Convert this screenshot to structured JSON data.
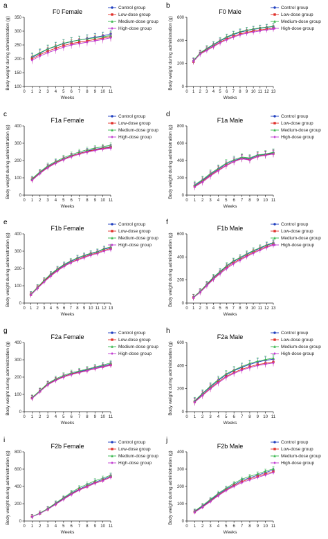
{
  "chart_data": [
    {
      "panel": "a",
      "type": "line",
      "title": "F0 Female",
      "xlabel": "Weeks",
      "ylabel": "Body weight during administration (g)",
      "x": [
        1,
        2,
        3,
        4,
        5,
        6,
        7,
        8,
        9,
        10,
        11
      ],
      "xlim": [
        0,
        11
      ],
      "ylim": [
        100,
        350
      ],
      "yticks": [
        100,
        150,
        200,
        250,
        300,
        350
      ],
      "legend": "top-right",
      "grid": false,
      "series": [
        {
          "name": "Control group",
          "color": "#1f3fbf",
          "values": [
            205,
            220,
            235,
            245,
            255,
            262,
            268,
            273,
            278,
            283,
            290
          ],
          "error": 14
        },
        {
          "name": "Low-dose group",
          "color": "#e0302a",
          "values": [
            200,
            215,
            228,
            238,
            248,
            255,
            260,
            265,
            270,
            275,
            280
          ],
          "error": 14
        },
        {
          "name": "Medium-dose group",
          "color": "#35b54a",
          "values": [
            208,
            222,
            236,
            246,
            256,
            263,
            268,
            272,
            276,
            280,
            284
          ],
          "error": 14
        },
        {
          "name": "High-dose group",
          "color": "#c03ad0",
          "values": [
            195,
            210,
            222,
            232,
            242,
            250,
            255,
            260,
            265,
            270,
            276
          ],
          "error": 14
        }
      ]
    },
    {
      "panel": "b",
      "type": "line",
      "title": "F0 Male",
      "xlabel": "Weeks",
      "ylabel": "Body weight during administration (g)",
      "x": [
        1,
        2,
        3,
        4,
        5,
        6,
        7,
        8,
        9,
        10,
        11,
        12,
        13
      ],
      "xlim": [
        0,
        13
      ],
      "ylim": [
        0,
        600
      ],
      "yticks": [
        0,
        200,
        400,
        600
      ],
      "legend": "top-right",
      "grid": false,
      "series": [
        {
          "name": "Control group",
          "color": "#1f3fbf",
          "values": [
            220,
            290,
            325,
            360,
            395,
            425,
            450,
            470,
            485,
            495,
            505,
            512,
            520
          ],
          "error": 25
        },
        {
          "name": "Low-dose group",
          "color": "#e0302a",
          "values": [
            215,
            285,
            318,
            350,
            385,
            412,
            435,
            455,
            470,
            480,
            490,
            498,
            505
          ],
          "error": 25
        },
        {
          "name": "Medium-dose group",
          "color": "#35b54a",
          "values": [
            225,
            292,
            330,
            365,
            400,
            430,
            455,
            475,
            488,
            498,
            508,
            515,
            522
          ],
          "error": 25
        },
        {
          "name": "High-dose group",
          "color": "#c03ad0",
          "values": [
            218,
            280,
            312,
            345,
            378,
            405,
            428,
            448,
            462,
            472,
            482,
            490,
            498
          ],
          "error": 25
        }
      ]
    },
    {
      "panel": "c",
      "type": "line",
      "title": "F1a Female",
      "xlabel": "Weeks",
      "ylabel": "Body weight during administration (g)",
      "x": [
        1,
        2,
        3,
        4,
        5,
        6,
        7,
        8,
        9,
        10,
        11
      ],
      "xlim": [
        0,
        11
      ],
      "ylim": [
        0,
        400
      ],
      "yticks": [
        0,
        100,
        200,
        300,
        400
      ],
      "legend": "top-right",
      "grid": false,
      "series": [
        {
          "name": "Control group",
          "color": "#1f3fbf",
          "values": [
            90,
            130,
            165,
            190,
            210,
            228,
            242,
            255,
            265,
            272,
            280
          ],
          "error": 15
        },
        {
          "name": "Low-dose group",
          "color": "#e0302a",
          "values": [
            88,
            128,
            162,
            188,
            208,
            226,
            240,
            252,
            262,
            270,
            276
          ],
          "error": 15
        },
        {
          "name": "Medium-dose group",
          "color": "#35b54a",
          "values": [
            95,
            135,
            170,
            195,
            216,
            234,
            250,
            262,
            272,
            280,
            288
          ],
          "error": 15
        },
        {
          "name": "High-dose group",
          "color": "#c03ad0",
          "values": [
            85,
            125,
            158,
            184,
            204,
            222,
            236,
            248,
            258,
            266,
            272
          ],
          "error": 15
        }
      ]
    },
    {
      "panel": "d",
      "type": "line",
      "title": "F1a Male",
      "xlabel": "Weeks",
      "ylabel": "Body weight during administration (g)",
      "x": [
        1,
        2,
        3,
        4,
        5,
        6,
        7,
        8,
        9,
        10,
        11
      ],
      "xlim": [
        0,
        11
      ],
      "ylim": [
        0,
        800
      ],
      "yticks": [
        0,
        200,
        400,
        600,
        800
      ],
      "legend": "top-right",
      "grid": false,
      "series": [
        {
          "name": "Control group",
          "color": "#1f3fbf",
          "values": [
            110,
            170,
            240,
            300,
            360,
            400,
            430,
            420,
            460,
            470,
            490
          ],
          "error": 40
        },
        {
          "name": "Low-dose group",
          "color": "#e0302a",
          "values": [
            100,
            160,
            230,
            290,
            345,
            390,
            425,
            410,
            450,
            465,
            480
          ],
          "error": 40
        },
        {
          "name": "Medium-dose group",
          "color": "#35b54a",
          "values": [
            120,
            180,
            250,
            310,
            370,
            410,
            440,
            430,
            465,
            475,
            495
          ],
          "error": 40
        },
        {
          "name": "High-dose group",
          "color": "#c03ad0",
          "values": [
            95,
            150,
            220,
            280,
            340,
            385,
            420,
            405,
            445,
            460,
            475
          ],
          "error": 40
        }
      ]
    },
    {
      "panel": "e",
      "type": "line",
      "title": "F1b Female",
      "xlabel": "Weeks",
      "ylabel": "Body weight during administration (g)",
      "x": [
        1,
        2,
        3,
        4,
        5,
        6,
        7,
        8,
        9,
        10,
        11,
        12,
        13
      ],
      "xlim": [
        0,
        13
      ],
      "ylim": [
        0,
        400
      ],
      "yticks": [
        0,
        100,
        200,
        300,
        400
      ],
      "legend": "top-right",
      "grid": false,
      "series": [
        {
          "name": "Control group",
          "color": "#1f3fbf",
          "values": [
            50,
            90,
            130,
            165,
            195,
            220,
            240,
            258,
            272,
            285,
            295,
            312,
            320
          ],
          "error": 15
        },
        {
          "name": "Low-dose group",
          "color": "#e0302a",
          "values": [
            48,
            88,
            126,
            160,
            190,
            215,
            235,
            252,
            266,
            280,
            290,
            305,
            315
          ],
          "error": 15
        },
        {
          "name": "Medium-dose group",
          "color": "#35b54a",
          "values": [
            52,
            92,
            132,
            168,
            198,
            224,
            244,
            262,
            276,
            288,
            298,
            315,
            325
          ],
          "error": 15
        },
        {
          "name": "High-dose group",
          "color": "#c03ad0",
          "values": [
            46,
            85,
            122,
            156,
            186,
            212,
            232,
            248,
            262,
            276,
            286,
            300,
            310
          ],
          "error": 15
        }
      ]
    },
    {
      "panel": "f",
      "type": "line",
      "title": "F1b Male",
      "xlabel": "Weeks",
      "ylabel": "Body weight during administration (g)",
      "x": [
        1,
        2,
        3,
        4,
        5,
        6,
        7,
        8,
        9,
        10,
        11,
        12,
        13
      ],
      "xlim": [
        0,
        13
      ],
      "ylim": [
        0,
        600
      ],
      "yticks": [
        0,
        200,
        400,
        600
      ],
      "legend": "top-right",
      "grid": false,
      "series": [
        {
          "name": "Control group",
          "color": "#1f3fbf",
          "values": [
            50,
            100,
            160,
            220,
            270,
            320,
            360,
            390,
            420,
            450,
            475,
            500,
            520
          ],
          "error": 25
        },
        {
          "name": "Low-dose group",
          "color": "#e0302a",
          "values": [
            48,
            95,
            155,
            212,
            262,
            310,
            350,
            380,
            410,
            440,
            465,
            490,
            510
          ],
          "error": 25
        },
        {
          "name": "Medium-dose group",
          "color": "#35b54a",
          "values": [
            52,
            102,
            165,
            225,
            275,
            325,
            365,
            395,
            428,
            455,
            480,
            505,
            525
          ],
          "error": 25
        },
        {
          "name": "High-dose group",
          "color": "#c03ad0",
          "values": [
            46,
            92,
            150,
            205,
            255,
            300,
            340,
            372,
            402,
            432,
            458,
            482,
            502
          ],
          "error": 25
        }
      ]
    },
    {
      "panel": "g",
      "type": "line",
      "title": "F2a Female",
      "xlabel": "Weeks",
      "ylabel": "Body weight during administration (g)",
      "x": [
        1,
        2,
        3,
        4,
        5,
        6,
        7,
        8,
        9,
        10,
        11
      ],
      "xlim": [
        0,
        11
      ],
      "ylim": [
        0,
        400
      ],
      "yticks": [
        0,
        100,
        200,
        300,
        400
      ],
      "legend": "top-right",
      "grid": false,
      "series": [
        {
          "name": "Control group",
          "color": "#1f3fbf",
          "values": [
            80,
            120,
            160,
            185,
            205,
            220,
            232,
            242,
            255,
            265,
            275
          ],
          "error": 15
        },
        {
          "name": "Low-dose group",
          "color": "#e0302a",
          "values": [
            78,
            118,
            158,
            183,
            203,
            218,
            228,
            238,
            250,
            260,
            270
          ],
          "error": 15
        },
        {
          "name": "Medium-dose group",
          "color": "#35b54a",
          "values": [
            82,
            122,
            164,
            190,
            210,
            225,
            236,
            246,
            258,
            270,
            282
          ],
          "error": 15
        },
        {
          "name": "High-dose group",
          "color": "#c03ad0",
          "values": [
            76,
            116,
            155,
            180,
            200,
            214,
            226,
            236,
            248,
            258,
            268
          ],
          "error": 15
        }
      ]
    },
    {
      "panel": "h",
      "type": "line",
      "title": "F2a Male",
      "xlabel": "Weeks",
      "ylabel": "Body weight during administration (g)",
      "x": [
        1,
        2,
        3,
        4,
        5,
        6,
        7,
        8,
        9,
        10,
        11
      ],
      "xlim": [
        0,
        11
      ],
      "ylim": [
        0,
        600
      ],
      "yticks": [
        0,
        200,
        400,
        600
      ],
      "legend": "top-right",
      "grid": false,
      "series": [
        {
          "name": "Control group",
          "color": "#1f3fbf",
          "values": [
            90,
            155,
            215,
            270,
            320,
            355,
            385,
            410,
            430,
            445,
            455
          ],
          "error": 30
        },
        {
          "name": "Low-dose group",
          "color": "#e0302a",
          "values": [
            85,
            145,
            205,
            258,
            305,
            340,
            368,
            390,
            408,
            420,
            430
          ],
          "error": 30
        },
        {
          "name": "Medium-dose group",
          "color": "#35b54a",
          "values": [
            95,
            160,
            222,
            278,
            328,
            362,
            392,
            418,
            438,
            452,
            465
          ],
          "error": 30
        },
        {
          "name": "High-dose group",
          "color": "#c03ad0",
          "values": [
            82,
            140,
            198,
            250,
            298,
            332,
            360,
            382,
            400,
            412,
            422
          ],
          "error": 30
        }
      ]
    },
    {
      "panel": "i",
      "type": "line",
      "title": "F2b Female",
      "xlabel": "Weeks",
      "ylabel": "Body weight during administration (g)",
      "x": [
        1,
        2,
        3,
        4,
        5,
        6,
        7,
        8,
        9,
        10,
        11
      ],
      "xlim": [
        0,
        11
      ],
      "ylim": [
        0,
        800
      ],
      "yticks": [
        0,
        200,
        400,
        600,
        800
      ],
      "legend": "top-right",
      "grid": false,
      "series": [
        {
          "name": "Control group",
          "color": "#1f3fbf",
          "values": [
            50,
            90,
            140,
            200,
            260,
            320,
            370,
            410,
            450,
            480,
            520
          ],
          "error": 25
        },
        {
          "name": "Low-dose group",
          "color": "#e0302a",
          "values": [
            50,
            88,
            136,
            195,
            255,
            312,
            362,
            400,
            440,
            470,
            510
          ],
          "error": 25
        },
        {
          "name": "Medium-dose group",
          "color": "#35b54a",
          "values": [
            52,
            92,
            145,
            208,
            270,
            332,
            385,
            425,
            465,
            495,
            530
          ],
          "error": 25
        },
        {
          "name": "High-dose group",
          "color": "#c03ad0",
          "values": [
            48,
            86,
            134,
            192,
            250,
            306,
            356,
            395,
            435,
            465,
            505
          ],
          "error": 25
        }
      ]
    },
    {
      "panel": "j",
      "type": "line",
      "title": "F2b Male",
      "xlabel": "Weeks",
      "ylabel": "Body weight during administration (g)",
      "x": [
        1,
        2,
        3,
        4,
        5,
        6,
        7,
        8,
        9,
        10,
        11
      ],
      "xlim": [
        0,
        11
      ],
      "ylim": [
        0,
        400
      ],
      "yticks": [
        0,
        100,
        200,
        300,
        400
      ],
      "legend": "top-right",
      "grid": false,
      "series": [
        {
          "name": "Control group",
          "color": "#1f3fbf",
          "values": [
            55,
            85,
            120,
            155,
            185,
            210,
            235,
            250,
            265,
            280,
            295
          ],
          "error": 12
        },
        {
          "name": "Low-dose group",
          "color": "#e0302a",
          "values": [
            52,
            82,
            116,
            150,
            180,
            205,
            228,
            244,
            258,
            272,
            286
          ],
          "error": 12
        },
        {
          "name": "Medium-dose group",
          "color": "#35b54a",
          "values": [
            58,
            90,
            125,
            160,
            190,
            218,
            242,
            258,
            272,
            288,
            302
          ],
          "error": 12
        },
        {
          "name": "High-dose group",
          "color": "#c03ad0",
          "values": [
            50,
            80,
            112,
            146,
            176,
            200,
            222,
            238,
            252,
            266,
            280
          ],
          "error": 12
        }
      ]
    }
  ]
}
